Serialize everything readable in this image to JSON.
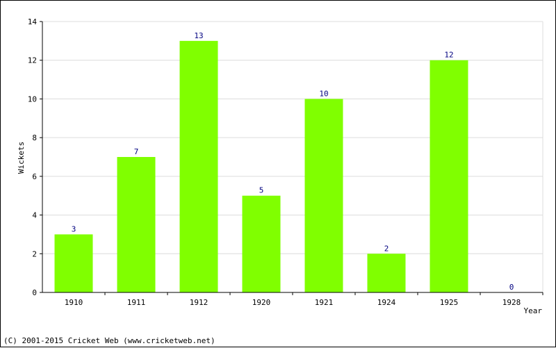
{
  "chart_data": {
    "type": "bar",
    "categories": [
      "1910",
      "1911",
      "1912",
      "1920",
      "1921",
      "1924",
      "1925",
      "1928"
    ],
    "values": [
      3,
      7,
      13,
      5,
      10,
      2,
      12,
      0
    ],
    "xlabel": "Year",
    "ylabel": "Wickets",
    "ylim": [
      0,
      14
    ],
    "yticks": [
      0,
      2,
      4,
      6,
      8,
      10,
      12,
      14
    ],
    "bar_color": "#80ff00",
    "label_color": "#000080",
    "grid": true,
    "legend": "none"
  },
  "footer": {
    "copyright": "(C) 2001-2015 Cricket Web (www.cricketweb.net)"
  }
}
